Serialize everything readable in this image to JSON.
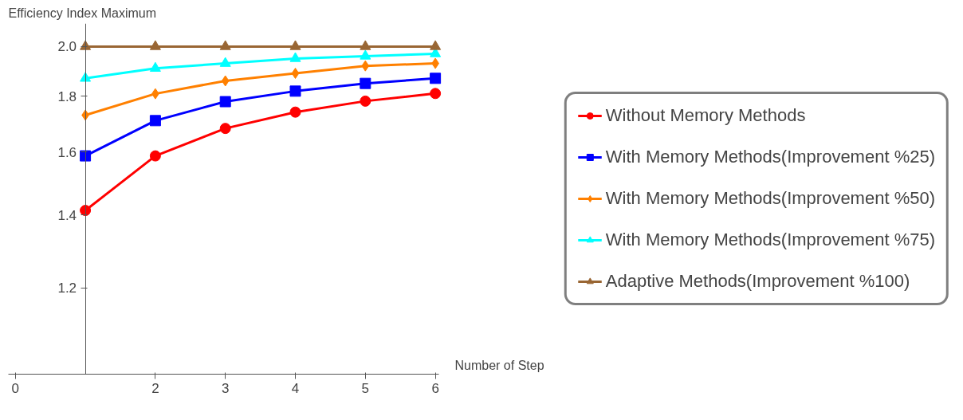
{
  "chart_data": {
    "type": "line",
    "xlabel": "Number of Step",
    "ylabel": "Efficiency Index Maximum",
    "x": [
      1,
      2,
      3,
      4,
      5,
      6
    ],
    "series": [
      {
        "name": "Without Memory Methods",
        "color": "#ff0000",
        "marker": "circle",
        "values": [
          1.414,
          1.587,
          1.682,
          1.741,
          1.782,
          1.811
        ]
      },
      {
        "name": "With Memory Methods(Improvement %25)",
        "color": "#0000ff",
        "marker": "square",
        "values": [
          1.587,
          1.71,
          1.78,
          1.82,
          1.85,
          1.87
        ]
      },
      {
        "name": "With Memory Methods(Improvement %50)",
        "color": "#ff8000",
        "marker": "diamond",
        "values": [
          1.73,
          1.81,
          1.86,
          1.89,
          1.92,
          1.93
        ]
      },
      {
        "name": "With Memory Methods(Improvement %75)",
        "color": "#00ffff",
        "marker": "triangle",
        "values": [
          1.87,
          1.91,
          1.93,
          1.95,
          1.96,
          1.97
        ]
      },
      {
        "name": "Adaptive Methods(Improvement %100)",
        "color": "#996633",
        "marker": "triangle",
        "values": [
          2.0,
          2.0,
          2.0,
          2.0,
          2.0,
          2.0
        ]
      }
    ],
    "xlim": [
      -0.1,
      6.05
    ],
    "xticks": [
      0,
      2,
      3,
      4,
      5,
      6
    ],
    "ylim": [
      1.0,
      2.1
    ],
    "yticks": [
      1.2,
      1.4,
      1.6,
      1.8,
      {
        "value": 2.0,
        "label": "2.0"
      }
    ],
    "log": "y",
    "grid": false,
    "legend": "right",
    "line_style": "solid"
  }
}
